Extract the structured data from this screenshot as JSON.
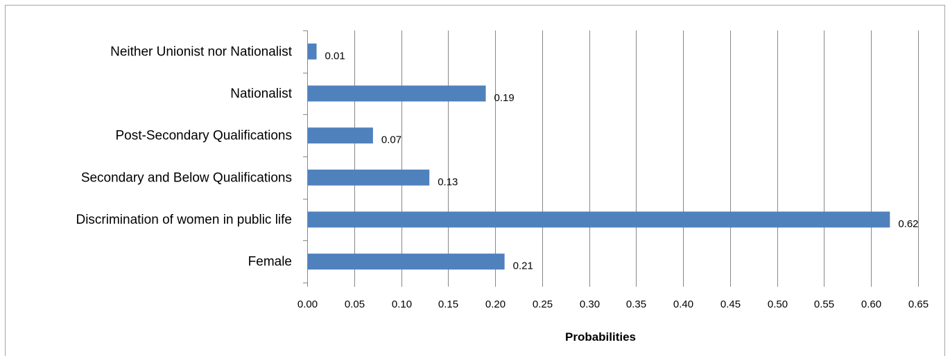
{
  "chart_data": {
    "type": "bar",
    "orientation": "horizontal",
    "categories": [
      "Neither Unionist nor Nationalist",
      "Nationalist",
      "Post-Secondary Qualifications",
      "Secondary and Below Qualifications",
      "Discrimination of women in public life",
      "Female"
    ],
    "values": [
      0.01,
      0.19,
      0.07,
      0.13,
      0.62,
      0.21
    ],
    "data_labels": [
      "0.01",
      "0.19",
      "0.07",
      "0.13",
      "0.62",
      "0.21"
    ],
    "xlabel": "Probabilities",
    "xlim": [
      0,
      0.65
    ],
    "xticks": [
      "0.00",
      "0.05",
      "0.10",
      "0.15",
      "0.20",
      "0.25",
      "0.30",
      "0.35",
      "0.40",
      "0.45",
      "0.50",
      "0.55",
      "0.60",
      "0.65"
    ],
    "grid": "vertical",
    "legend": "none",
    "bar_color": "#4f81bd",
    "gridline_color": "#878787"
  }
}
